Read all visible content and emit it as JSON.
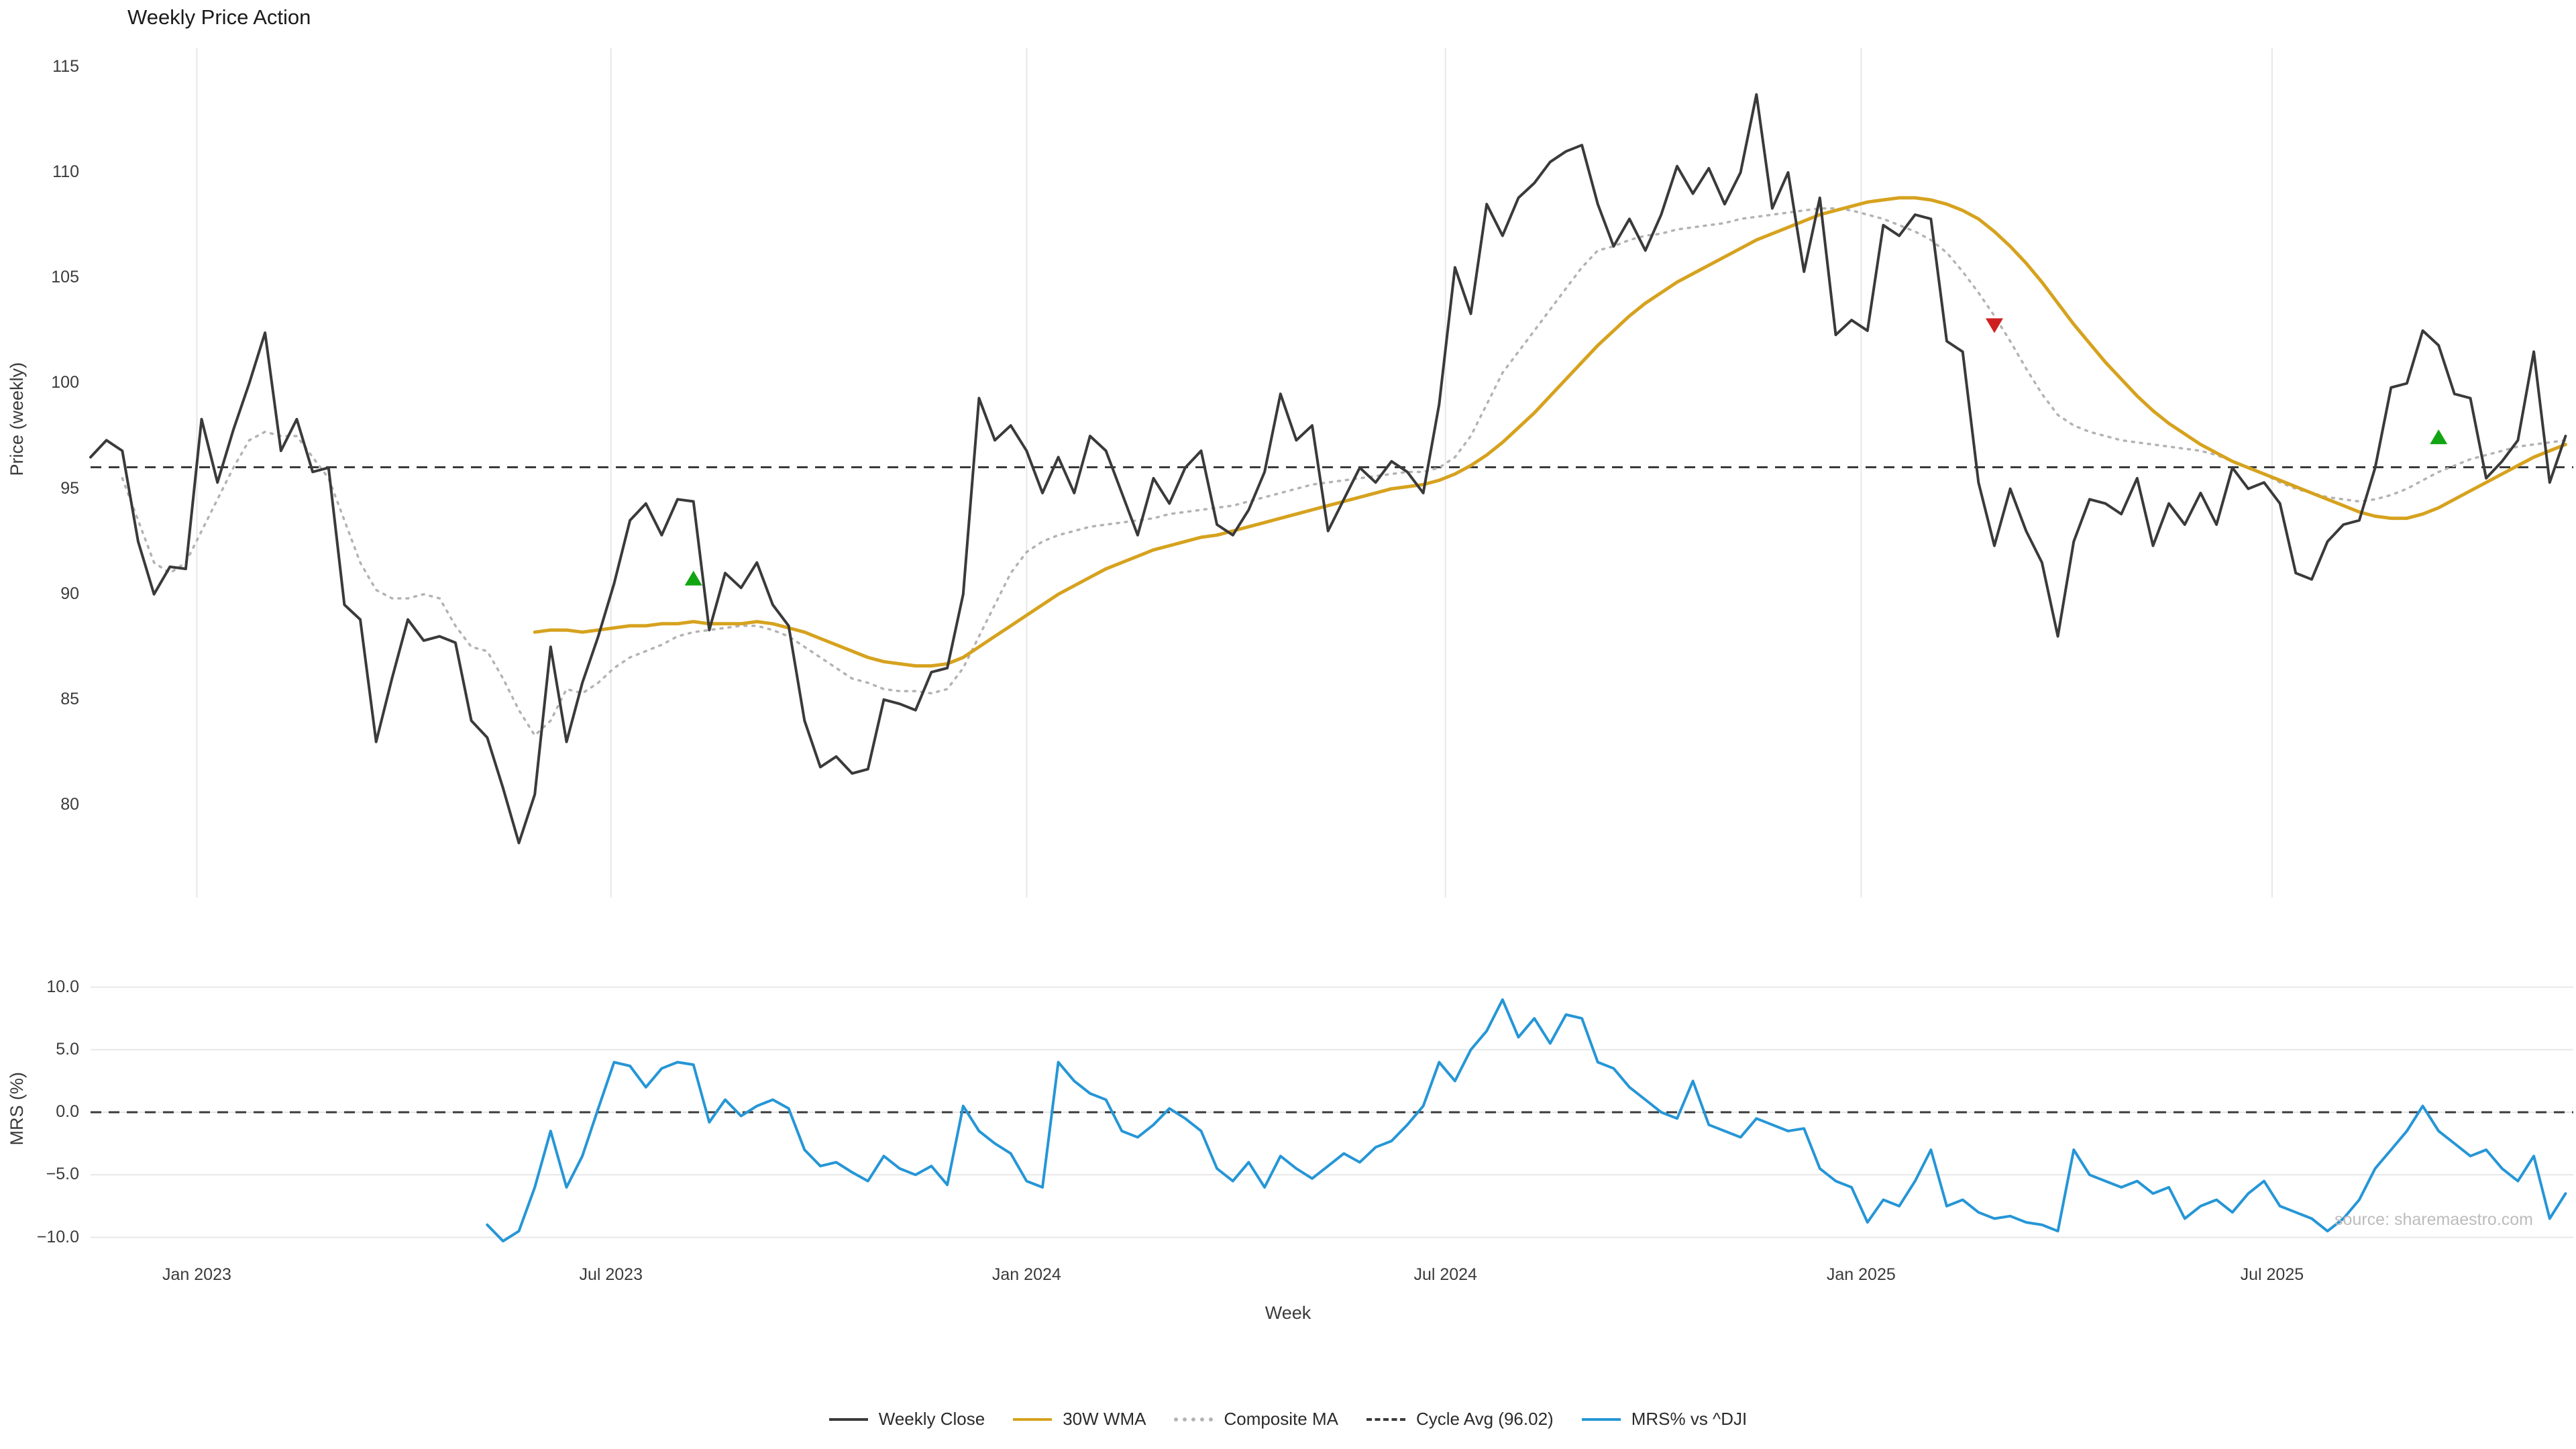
{
  "title": "Weekly Price Action",
  "source": "source: sharemaestro.com",
  "axes": {
    "price_ylabel": "Price (weekly)",
    "mrs_ylabel": "MRS (%)",
    "xlabel": "Week",
    "price_ticks": [
      {
        "label": "115",
        "v": 115
      },
      {
        "label": "110",
        "v": 110
      },
      {
        "label": "105",
        "v": 105
      },
      {
        "label": "100",
        "v": 100
      },
      {
        "label": "95",
        "v": 95
      },
      {
        "label": "90",
        "v": 90
      },
      {
        "label": "85",
        "v": 85
      },
      {
        "label": "80",
        "v": 80
      }
    ],
    "mrs_ticks": [
      {
        "label": "10.0",
        "v": 10
      },
      {
        "label": "5.0",
        "v": 5
      },
      {
        "label": "0.0",
        "v": 0
      },
      {
        "label": "−5.0",
        "v": -5
      },
      {
        "label": "−10.0",
        "v": -10
      }
    ],
    "x_ticks": [
      {
        "label": "Jan 2023",
        "i": 6.7
      },
      {
        "label": "Jul 2023",
        "i": 32.8
      },
      {
        "label": "Jan 2024",
        "i": 59.0
      },
      {
        "label": "Jul 2024",
        "i": 85.4
      },
      {
        "label": "Jan 2025",
        "i": 111.6
      },
      {
        "label": "Jul 2025",
        "i": 137.5
      }
    ]
  },
  "legend": [
    {
      "label": "Weekly Close",
      "style": "solid",
      "color": "#3a3a3a"
    },
    {
      "label": "30W WMA",
      "style": "solid",
      "color": "#d6a21e"
    },
    {
      "label": "Composite MA",
      "style": "dotted",
      "color": "#b3b3b3"
    },
    {
      "label": "Cycle Avg (96.02)",
      "style": "dashed",
      "color": "#3a3a3a"
    },
    {
      "label": "MRS% vs ^DJI",
      "style": "solid",
      "color": "#2596d6"
    }
  ],
  "colors": {
    "grid": "#e7e7e7",
    "weekly_close": "#3a3a3a",
    "wma": "#d6a21e",
    "composite": "#b3b3b3",
    "cycle_avg": "#3a3a3a",
    "mrs": "#2596d6",
    "buy_marker": "#11a511",
    "sell_marker": "#cf2020"
  },
  "chart_data": {
    "type": "line",
    "title": "Weekly Price Action",
    "xlabel": "Week",
    "x_unit": "weekly index from mid-Nov 2022 to Nov 2025",
    "x_tick_labels": [
      "Jan 2023",
      "Jul 2023",
      "Jan 2024",
      "Jul 2024",
      "Jan 2025",
      "Jul 2025"
    ],
    "panels": [
      {
        "name": "price",
        "ylabel": "Price (weekly)",
        "ylim": [
          75.7,
          115.8
        ],
        "grid": "vertical"
      },
      {
        "name": "mrs",
        "ylabel": "MRS (%)",
        "ylim": [
          -11.3,
          11.0
        ],
        "grid": "horizontal",
        "zero_line": true
      }
    ],
    "cycle_avg": 96.02,
    "series": [
      {
        "name": "Weekly Close",
        "panel": "price",
        "start": 0,
        "values": [
          96.5,
          97.3,
          96.8,
          92.5,
          90.0,
          91.3,
          91.2,
          98.3,
          95.3,
          97.8,
          100.0,
          102.4,
          96.8,
          98.3,
          95.8,
          96.0,
          89.5,
          88.8,
          83.0,
          86.0,
          88.8,
          87.8,
          88.0,
          87.7,
          84.0,
          83.2,
          80.8,
          78.2,
          80.5,
          87.5,
          83.0,
          85.8,
          88.0,
          90.5,
          93.5,
          94.3,
          92.8,
          94.5,
          94.4,
          88.3,
          91.0,
          90.3,
          91.5,
          89.5,
          88.5,
          84.0,
          81.8,
          82.3,
          81.5,
          81.7,
          85.0,
          84.8,
          84.5,
          86.3,
          86.5,
          90.0,
          99.3,
          97.3,
          98.0,
          96.8,
          94.8,
          96.5,
          94.8,
          97.5,
          96.8,
          94.8,
          92.8,
          95.5,
          94.3,
          96.0,
          96.8,
          93.3,
          92.8,
          94.0,
          95.8,
          99.5,
          97.3,
          98.0,
          93.0,
          94.5,
          96.0,
          95.3,
          96.3,
          95.8,
          94.8,
          99.0,
          105.5,
          103.3,
          108.5,
          107.0,
          108.8,
          109.5,
          110.5,
          111.0,
          111.3,
          108.5,
          106.5,
          107.8,
          106.3,
          108.0,
          110.3,
          109.0,
          110.2,
          108.5,
          110.0,
          113.7,
          108.3,
          110.0,
          105.3,
          108.8,
          102.3,
          103.0,
          102.5,
          107.5,
          107.0,
          108.0,
          107.8,
          102.0,
          101.5,
          95.3,
          92.3,
          95.0,
          93.0,
          91.5,
          88.0,
          92.5,
          94.5,
          94.3,
          93.8,
          95.5,
          92.3,
          94.3,
          93.3,
          94.8,
          93.3,
          96.0,
          95.0,
          95.3,
          94.3,
          91.0,
          90.7,
          92.5,
          93.3,
          93.5,
          96.0,
          99.8,
          100.0,
          102.5,
          101.8,
          99.5,
          99.3,
          95.5,
          96.3,
          97.3,
          101.5,
          95.3,
          97.5
        ]
      },
      {
        "name": "30W WMA",
        "panel": "price",
        "start": 28,
        "values": [
          88.2,
          88.3,
          88.3,
          88.2,
          88.3,
          88.4,
          88.5,
          88.5,
          88.6,
          88.6,
          88.7,
          88.6,
          88.6,
          88.6,
          88.7,
          88.6,
          88.4,
          88.2,
          87.9,
          87.6,
          87.3,
          87.0,
          86.8,
          86.7,
          86.6,
          86.6,
          86.7,
          87.0,
          87.5,
          88.0,
          88.5,
          89.0,
          89.5,
          90.0,
          90.4,
          90.8,
          91.2,
          91.5,
          91.8,
          92.1,
          92.3,
          92.5,
          92.7,
          92.8,
          93.0,
          93.2,
          93.4,
          93.6,
          93.8,
          94.0,
          94.2,
          94.4,
          94.6,
          94.8,
          95.0,
          95.1,
          95.2,
          95.4,
          95.7,
          96.1,
          96.6,
          97.2,
          97.9,
          98.6,
          99.4,
          100.2,
          101.0,
          101.8,
          102.5,
          103.2,
          103.8,
          104.3,
          104.8,
          105.2,
          105.6,
          106.0,
          106.4,
          106.8,
          107.1,
          107.4,
          107.7,
          108.0,
          108.2,
          108.4,
          108.6,
          108.7,
          108.8,
          108.8,
          108.7,
          108.5,
          108.2,
          107.8,
          107.2,
          106.5,
          105.7,
          104.8,
          103.8,
          102.8,
          101.9,
          101.0,
          100.2,
          99.4,
          98.7,
          98.1,
          97.6,
          97.1,
          96.7,
          96.3,
          96.0,
          95.7,
          95.4,
          95.1,
          94.8,
          94.5,
          94.2,
          93.9,
          93.7,
          93.6,
          93.6,
          93.8,
          94.1,
          94.5,
          94.9,
          95.3,
          95.7,
          96.1,
          96.5,
          96.8,
          97.1
        ]
      },
      {
        "name": "Composite MA",
        "panel": "price",
        "start": 2,
        "values": [
          95.5,
          93.5,
          91.5,
          91.0,
          91.5,
          93.0,
          94.5,
          96.0,
          97.3,
          97.7,
          97.5,
          97.5,
          96.5,
          95.5,
          93.5,
          91.5,
          90.2,
          89.8,
          89.8,
          90.0,
          89.8,
          88.5,
          87.5,
          87.3,
          86.0,
          84.5,
          83.3,
          84.0,
          85.5,
          85.3,
          85.8,
          86.5,
          87.0,
          87.3,
          87.6,
          88.0,
          88.2,
          88.3,
          88.4,
          88.5,
          88.5,
          88.3,
          88.0,
          87.5,
          87.0,
          86.5,
          86.0,
          85.8,
          85.5,
          85.4,
          85.4,
          85.3,
          85.5,
          86.5,
          88.0,
          89.5,
          91.0,
          92.0,
          92.5,
          92.8,
          93.0,
          93.2,
          93.3,
          93.4,
          93.5,
          93.6,
          93.8,
          93.9,
          94.0,
          94.1,
          94.2,
          94.4,
          94.6,
          94.8,
          95.0,
          95.2,
          95.3,
          95.4,
          95.5,
          95.6,
          95.7,
          95.8,
          95.8,
          96.0,
          96.5,
          97.5,
          99.0,
          100.5,
          101.5,
          102.5,
          103.5,
          104.5,
          105.5,
          106.3,
          106.5,
          106.8,
          107.0,
          107.1,
          107.3,
          107.4,
          107.5,
          107.6,
          107.8,
          107.9,
          108.0,
          108.1,
          108.2,
          108.3,
          108.3,
          108.2,
          108.0,
          107.8,
          107.5,
          107.2,
          106.8,
          106.2,
          105.3,
          104.3,
          103.2,
          102.0,
          100.7,
          99.5,
          98.5,
          98.0,
          97.7,
          97.5,
          97.3,
          97.2,
          97.1,
          97.0,
          96.9,
          96.8,
          96.6,
          96.3,
          96.0,
          95.7,
          95.3,
          95.0,
          94.8,
          94.6,
          94.5,
          94.4,
          94.5,
          94.7,
          95.0,
          95.4,
          95.8,
          96.1,
          96.4,
          96.6,
          96.8,
          97.0,
          97.1,
          97.2,
          97.3
        ]
      },
      {
        "name": "MRS% vs ^DJI",
        "panel": "mrs",
        "start": 25,
        "values": [
          -9.0,
          -10.3,
          -9.5,
          -6.0,
          -1.5,
          -6.0,
          -3.5,
          0.3,
          4.0,
          3.7,
          2.0,
          3.5,
          4.0,
          3.8,
          -0.8,
          1.0,
          -0.3,
          0.5,
          1.0,
          0.3,
          -3.0,
          -4.3,
          -4.0,
          -4.8,
          -5.5,
          -3.5,
          -4.5,
          -5.0,
          -4.3,
          -5.8,
          0.5,
          -1.5,
          -2.5,
          -3.3,
          -5.5,
          -6.0,
          4.0,
          2.5,
          1.5,
          1.0,
          -1.5,
          -2.0,
          -1.0,
          0.3,
          -0.5,
          -1.5,
          -4.5,
          -5.5,
          -4.0,
          -6.0,
          -3.5,
          -4.5,
          -5.3,
          -4.3,
          -3.3,
          -4.0,
          -2.8,
          -2.3,
          -1.0,
          0.5,
          4.0,
          2.5,
          5.0,
          6.5,
          9.0,
          6.0,
          7.5,
          5.5,
          7.8,
          7.5,
          4.0,
          3.5,
          2.0,
          1.0,
          0.0,
          -0.5,
          2.5,
          -1.0,
          -1.5,
          -2.0,
          -0.5,
          -1.0,
          -1.5,
          -1.3,
          -4.5,
          -5.5,
          -6.0,
          -8.8,
          -7.0,
          -7.5,
          -5.5,
          -3.0,
          -7.5,
          -7.0,
          -8.0,
          -8.5,
          -8.3,
          -8.8,
          -9.0,
          -9.5,
          -3.0,
          -5.0,
          -5.5,
          -6.0,
          -5.5,
          -6.5,
          -6.0,
          -8.5,
          -7.5,
          -7.0,
          -8.0,
          -6.5,
          -5.5,
          -7.5,
          -8.0,
          -8.5,
          -9.5,
          -8.5,
          -7.0,
          -4.5,
          -3.0,
          -1.5,
          0.5,
          -1.5,
          -2.5,
          -3.5,
          -3.0,
          -4.5,
          -5.5,
          -3.5,
          -8.5,
          -6.5
        ]
      }
    ],
    "buy_signals": [
      {
        "i": 38,
        "value": 90.7
      },
      {
        "i": 148,
        "value": 97.4
      }
    ],
    "sell_signals": [
      {
        "i": 120,
        "value": 102.8
      }
    ]
  }
}
